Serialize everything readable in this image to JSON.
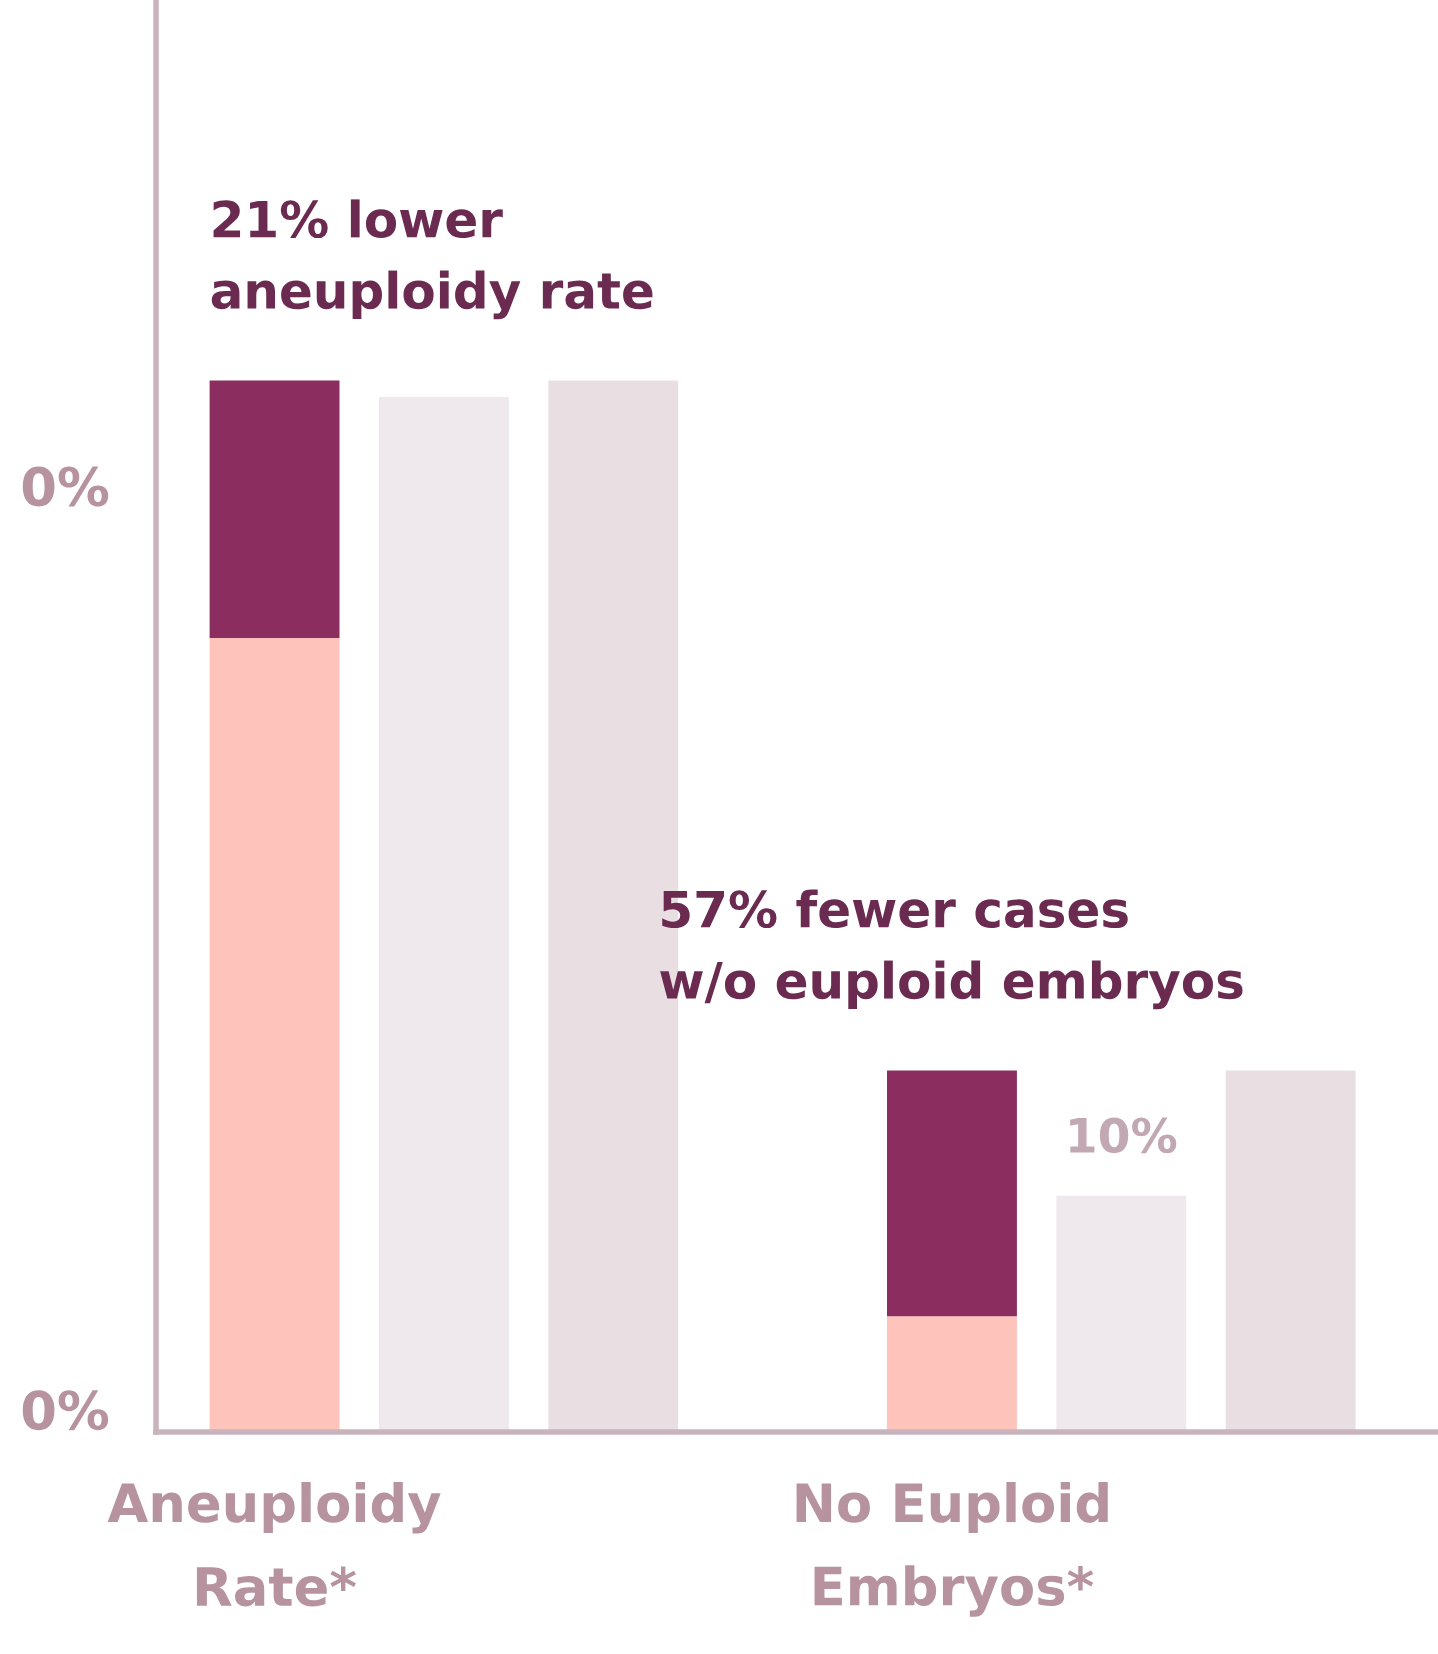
{
  "chart_data": {
    "type": "bar",
    "stacked": true,
    "categories": [
      "Aneuploidy\nRate*",
      null,
      null,
      null,
      "No Euploid\nEmbryos*",
      null,
      null
    ],
    "series": [
      {
        "colors": [
          "#fec4bb",
          "#efe8ec",
          "#e9dfe3",
          "#ffffff",
          "#fec4bb",
          "#efe8ec",
          "#e9dfe3"
        ],
        "values": [
          33.6,
          43.8,
          44.5,
          null,
          4.9,
          10,
          15.3
        ],
        "value_labels": [
          null,
          null,
          null,
          null,
          null,
          "10%",
          null
        ]
      },
      {
        "color": "#8b2d5f",
        "values": [
          10.9,
          null,
          null,
          null,
          10.4,
          null,
          null
        ]
      }
    ],
    "ylim": [
      0,
      60.6
    ],
    "annotations": [
      "0%",
      "0%",
      "21% lower\naneuploidy rate",
      "57% fewer cases\nw/o euploid embryos"
    ],
    "grid": false,
    "legend": false
  }
}
